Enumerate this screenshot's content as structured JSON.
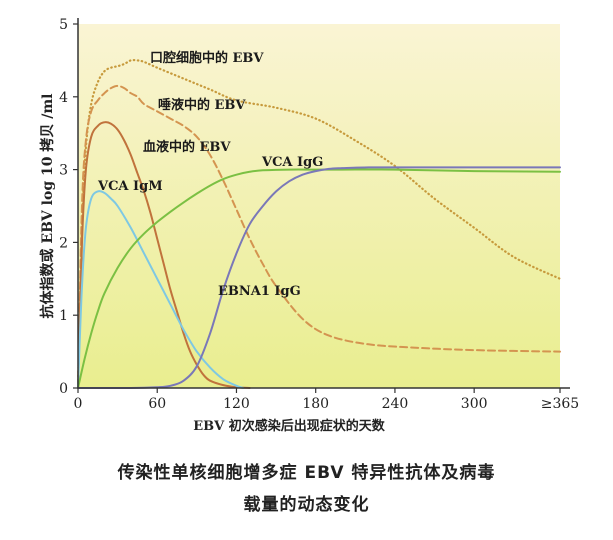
{
  "chart_data": {
    "type": "line",
    "title": "传染性单核细胞增多症 EBV 特异性抗体及病毒载量的动态变化",
    "xlabel": "EBV 初次感染后出现症状的天数",
    "ylabel": "抗体指数或 EBV log 10 拷贝 /ml",
    "xlim": [
      0,
      365
    ],
    "ylim": [
      0,
      5
    ],
    "x_ticks": [
      {
        "value": 0,
        "label": "0"
      },
      {
        "value": 60,
        "label": "60"
      },
      {
        "value": 120,
        "label": "120"
      },
      {
        "value": 180,
        "label": "180"
      },
      {
        "value": 240,
        "label": "240"
      },
      {
        "value": 300,
        "label": "300"
      },
      {
        "value": 365,
        "label": "≥365"
      }
    ],
    "y_ticks": [
      {
        "value": 0,
        "label": "0"
      },
      {
        "value": 1,
        "label": "1"
      },
      {
        "value": 2,
        "label": "2"
      },
      {
        "value": 3,
        "label": "3"
      },
      {
        "value": 4,
        "label": "4"
      },
      {
        "value": 5,
        "label": "5"
      }
    ],
    "series": [
      {
        "name": "口腔细胞中的 EBV",
        "color": "#c79a3c",
        "style": "dotted",
        "x": [
          0,
          3,
          6,
          10,
          15,
          20,
          25,
          30,
          35,
          40,
          45,
          50,
          60,
          80,
          100,
          120,
          150,
          180,
          210,
          240,
          270,
          300,
          330,
          365
        ],
        "y": [
          0,
          2.2,
          3.3,
          3.9,
          4.2,
          4.35,
          4.4,
          4.42,
          4.45,
          4.5,
          4.5,
          4.48,
          4.4,
          4.25,
          4.1,
          3.95,
          3.85,
          3.7,
          3.4,
          3.05,
          2.6,
          2.2,
          1.8,
          1.5
        ]
      },
      {
        "name": "唾液中的 EBV",
        "color": "#d49450",
        "style": "dashed",
        "x": [
          0,
          3,
          6,
          10,
          15,
          20,
          25,
          30,
          35,
          40,
          45,
          50,
          60,
          70,
          80,
          90,
          100,
          110,
          120,
          130,
          140,
          150,
          170,
          190,
          220,
          260,
          300,
          365
        ],
        "y": [
          0,
          2.5,
          3.4,
          3.8,
          3.95,
          4.05,
          4.12,
          4.15,
          4.12,
          4.05,
          4.0,
          3.9,
          3.8,
          3.7,
          3.6,
          3.45,
          3.2,
          2.85,
          2.45,
          2.05,
          1.7,
          1.4,
          0.95,
          0.72,
          0.6,
          0.55,
          0.52,
          0.5
        ]
      },
      {
        "name": "血液中的 EBV",
        "color": "#c0733c",
        "style": "solid",
        "x": [
          0,
          3,
          6,
          10,
          15,
          20,
          25,
          30,
          35,
          40,
          45,
          50,
          55,
          60,
          65,
          70,
          75,
          80,
          85,
          90,
          95,
          100,
          110,
          120,
          130
        ],
        "y": [
          0,
          2.0,
          3.0,
          3.45,
          3.6,
          3.65,
          3.63,
          3.55,
          3.4,
          3.2,
          2.95,
          2.7,
          2.4,
          2.05,
          1.7,
          1.35,
          1.05,
          0.75,
          0.5,
          0.32,
          0.18,
          0.1,
          0.04,
          0.01,
          0
        ]
      },
      {
        "name": "VCA IgM",
        "color": "#7ec8e3",
        "style": "solid",
        "x": [
          0,
          3,
          6,
          10,
          15,
          20,
          25,
          30,
          40,
          50,
          60,
          70,
          80,
          90,
          100,
          110,
          120,
          125
        ],
        "y": [
          0,
          1.4,
          2.2,
          2.6,
          2.7,
          2.68,
          2.6,
          2.5,
          2.2,
          1.85,
          1.5,
          1.15,
          0.8,
          0.5,
          0.28,
          0.12,
          0.03,
          0
        ]
      },
      {
        "name": "VCA IgG",
        "color": "#7bc043",
        "style": "solid",
        "x": [
          0,
          5,
          10,
          15,
          20,
          30,
          40,
          50,
          60,
          70,
          80,
          90,
          100,
          110,
          120,
          130,
          140,
          160,
          180,
          200,
          240,
          300,
          365
        ],
        "y": [
          0,
          0.4,
          0.75,
          1.05,
          1.3,
          1.65,
          1.92,
          2.12,
          2.28,
          2.42,
          2.55,
          2.67,
          2.78,
          2.87,
          2.93,
          2.97,
          2.99,
          3.0,
          3.0,
          3.0,
          3.0,
          2.98,
          2.97
        ]
      },
      {
        "name": "EBNA1 IgG",
        "color": "#7a78b8",
        "style": "solid",
        "x": [
          0,
          40,
          60,
          70,
          80,
          90,
          100,
          110,
          120,
          130,
          140,
          150,
          160,
          170,
          180,
          190,
          200,
          220,
          240,
          300,
          365
        ],
        "y": [
          0,
          0,
          0.01,
          0.03,
          0.1,
          0.3,
          0.75,
          1.35,
          1.85,
          2.25,
          2.5,
          2.7,
          2.84,
          2.93,
          2.98,
          3.01,
          3.02,
          3.03,
          3.03,
          3.03,
          3.03
        ]
      }
    ],
    "labels": [
      {
        "text": "口腔细胞中的 EBV",
        "series": "口腔细胞中的 EBV"
      },
      {
        "text": "唾液中的 EBV",
        "series": "唾液中的 EBV"
      },
      {
        "text": "血液中的 EBV",
        "series": "血液中的 EBV"
      },
      {
        "text": "VCA IgM",
        "series": "VCA IgM"
      },
      {
        "text": "VCA IgG",
        "series": "VCA IgG"
      },
      {
        "text": "EBNA1 IgG",
        "series": "EBNA1 IgG"
      }
    ],
    "background": {
      "top": "#faf4d4",
      "bottom": "#e9ee8f"
    }
  },
  "caption": {
    "line1": "传染性单核细胞增多症 EBV 特异性抗体及病毒",
    "line2": "载量的动态变化"
  }
}
